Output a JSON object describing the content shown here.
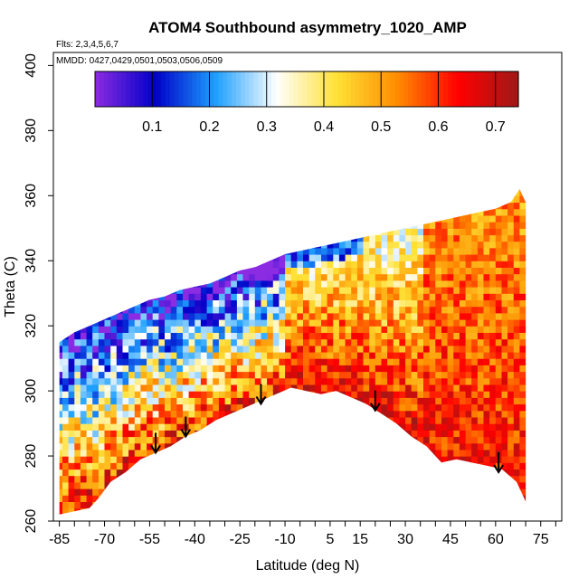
{
  "chart_data": {
    "type": "heatmap",
    "title": "ATOM4 Southbound asymmetry_1020_AMP",
    "annotations": [
      "Flts: 2,3,4,5,6,7",
      "MMDD: 0427,0429,0501,0503,0506,0509"
    ],
    "xlabel": "Latitude (deg N)",
    "ylabel": "Theta (C)",
    "xlim": [
      -87,
      82
    ],
    "ylim": [
      260,
      404
    ],
    "x_ticks": [
      -85,
      -70,
      -55,
      -40,
      -25,
      -10,
      5,
      15,
      30,
      45,
      60,
      75
    ],
    "y_ticks": [
      260,
      280,
      300,
      320,
      340,
      360,
      380,
      400
    ],
    "colorbar": {
      "range": [
        0,
        0.74
      ],
      "ticks": [
        0.1,
        0.2,
        0.3,
        0.4,
        0.5,
        0.6,
        0.7
      ],
      "colors": [
        "#8B2BE2",
        "#0000C8",
        "#1EA0FF",
        "#ffffff",
        "#FFE135",
        "#FF8C00",
        "#FF0000",
        "#A01818"
      ]
    },
    "arrows_lat": [
      -53,
      -43,
      -18,
      20,
      61
    ],
    "arrows_theta": [
      281,
      286,
      296,
      294,
      275
    ],
    "lower_boundary": {
      "x": [
        -75,
        -72,
        -68,
        -63,
        -58,
        -53,
        -48,
        -43,
        -38,
        -33,
        -28,
        -23,
        -18,
        -13,
        -8,
        -3,
        2,
        7,
        12,
        17,
        22,
        27,
        32,
        37,
        42,
        47,
        52,
        57,
        62,
        67,
        70
      ],
      "theta": [
        264,
        267,
        272,
        275,
        279,
        281,
        283,
        286,
        288,
        291,
        293,
        295,
        297,
        299,
        301,
        300,
        299,
        300,
        298,
        296,
        293,
        290,
        286,
        283,
        278,
        279,
        278,
        277,
        276,
        272,
        266
      ]
    },
    "upper_boundary": {
      "x": [
        -85,
        -80,
        -75,
        -70,
        -65,
        -60,
        -55,
        -50,
        -45,
        -40,
        -35,
        -30,
        -25,
        -20,
        -15,
        -10,
        -5,
        0,
        5,
        10,
        15,
        20,
        25,
        30,
        35,
        40,
        45,
        50,
        55,
        60,
        65,
        68,
        70
      ],
      "theta": [
        315,
        318,
        320,
        322,
        324,
        326,
        328,
        329,
        331,
        332,
        333,
        335,
        337,
        338,
        340,
        342,
        343,
        344,
        345,
        346,
        347,
        348,
        349,
        350,
        351,
        352,
        353,
        354,
        355,
        356,
        358,
        362,
        358
      ]
    },
    "grid": "off",
    "legend": "top colorbar"
  }
}
